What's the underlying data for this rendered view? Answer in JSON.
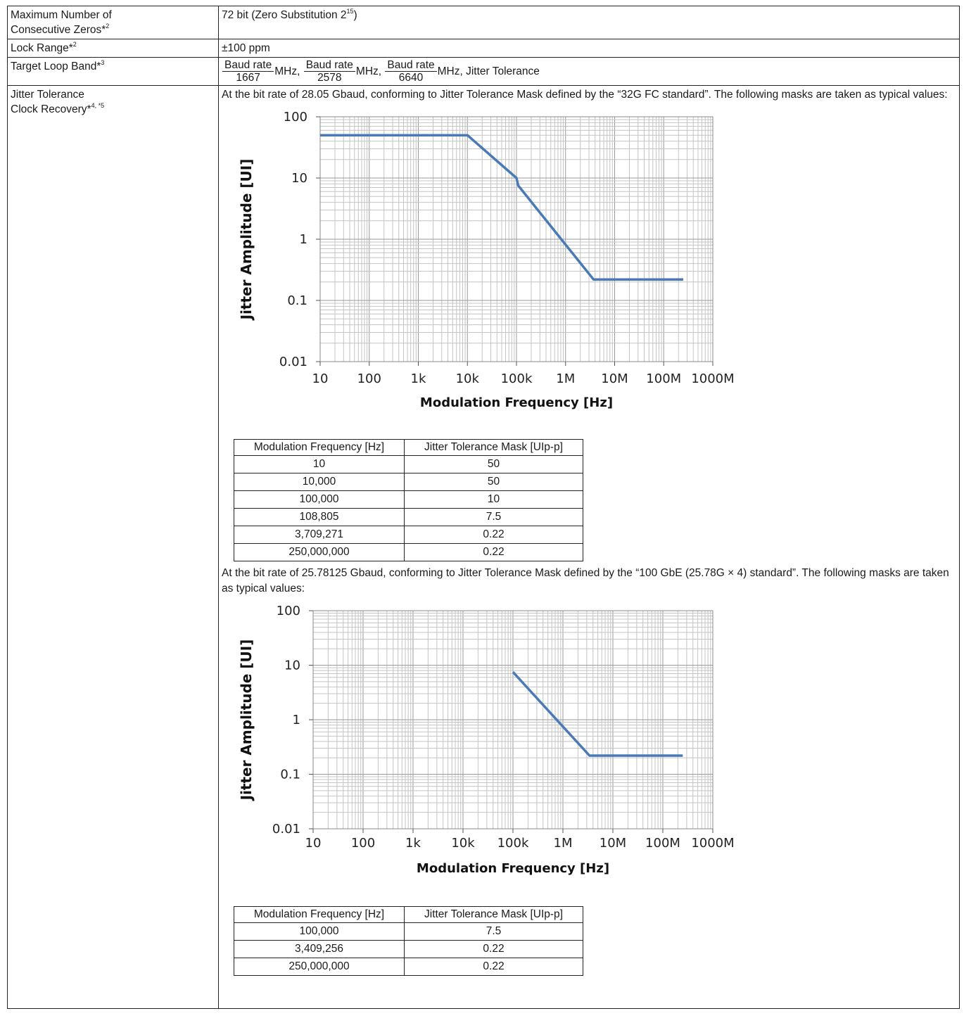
{
  "rows": {
    "zeros": {
      "label_a": "Maximum Number of",
      "label_b": "Consecutive Zeros*",
      "label_sup": "2",
      "value_pre": "72 bit (Zero Substitution 2",
      "value_sup": "15",
      "value_post": ")"
    },
    "lock": {
      "label": "Lock Range*",
      "label_sup": "2",
      "value": "±100 ppm"
    },
    "loop": {
      "label": "Target Loop Band*",
      "label_sup": "3",
      "fractions": [
        {
          "num": "Baud rate",
          "den": "1667",
          "after": "MHz,"
        },
        {
          "num": "Baud rate",
          "den": "2578",
          "after": "MHz,"
        },
        {
          "num": "Baud rate",
          "den": "6640",
          "after": "MHz, Jitter Tolerance"
        }
      ]
    },
    "jitter": {
      "label_a": "Jitter Tolerance",
      "label_b": "Clock Recovery*",
      "label_sup": "4, *5",
      "para1": "At the bit rate of 28.05 Gbaud, conforming to Jitter Tolerance Mask defined by the “32G FC standard”. The following masks are taken as typical values:",
      "para2": "At the bit rate of 25.78125 Gbaud, conforming to Jitter Tolerance Mask defined by the “100 GbE (25.78G × 4) standard”. The following masks are taken as typical values:"
    }
  },
  "chart_data": [
    {
      "type": "line",
      "xlabel": "Modulation Frequency [Hz]",
      "ylabel": "Jitter Amplitude [UI]",
      "x_scale": "log",
      "y_scale": "log",
      "xlim": [
        10,
        1000000000
      ],
      "ylim": [
        0.01,
        100
      ],
      "x_ticks": [
        "10",
        "100",
        "1k",
        "10k",
        "100k",
        "1M",
        "10M",
        "100M",
        "1000M"
      ],
      "y_ticks": [
        "100",
        "10",
        "1",
        "0.1",
        "0.01"
      ],
      "grid": true,
      "color": "#4a7ab5",
      "x": [
        10,
        10000,
        100000,
        108805,
        3709271,
        250000000
      ],
      "y": [
        50,
        50,
        10,
        7.5,
        0.22,
        0.22
      ]
    },
    {
      "type": "line",
      "xlabel": "Modulation Frequency [Hz]",
      "ylabel": "Jitter Amplitude [UI]",
      "x_scale": "log",
      "y_scale": "log",
      "xlim": [
        10,
        1000000000
      ],
      "ylim": [
        0.01,
        100
      ],
      "x_ticks": [
        "10",
        "100",
        "1k",
        "10k",
        "100k",
        "1M",
        "10M",
        "100M",
        "1000M"
      ],
      "y_ticks": [
        "100",
        "10",
        "1",
        "0.1",
        "0.01"
      ],
      "grid": true,
      "color": "#4a7ab5",
      "x": [
        100000,
        3409256,
        250000000
      ],
      "y": [
        7.5,
        0.22,
        0.22
      ]
    }
  ],
  "tables": [
    {
      "headers": [
        "Modulation Frequency [Hz]",
        "Jitter Tolerance Mask [UIp-p]"
      ],
      "rows": [
        [
          "10",
          "50"
        ],
        [
          "10,000",
          "50"
        ],
        [
          "100,000",
          "10"
        ],
        [
          "108,805",
          "7.5"
        ],
        [
          "3,709,271",
          "0.22"
        ],
        [
          "250,000,000",
          "0.22"
        ]
      ]
    },
    {
      "headers": [
        "Modulation Frequency [Hz]",
        "Jitter Tolerance Mask [UIp-p]"
      ],
      "rows": [
        [
          "100,000",
          "7.5"
        ],
        [
          "3,409,256",
          "0.22"
        ],
        [
          "250,000,000",
          "0.22"
        ]
      ]
    }
  ]
}
